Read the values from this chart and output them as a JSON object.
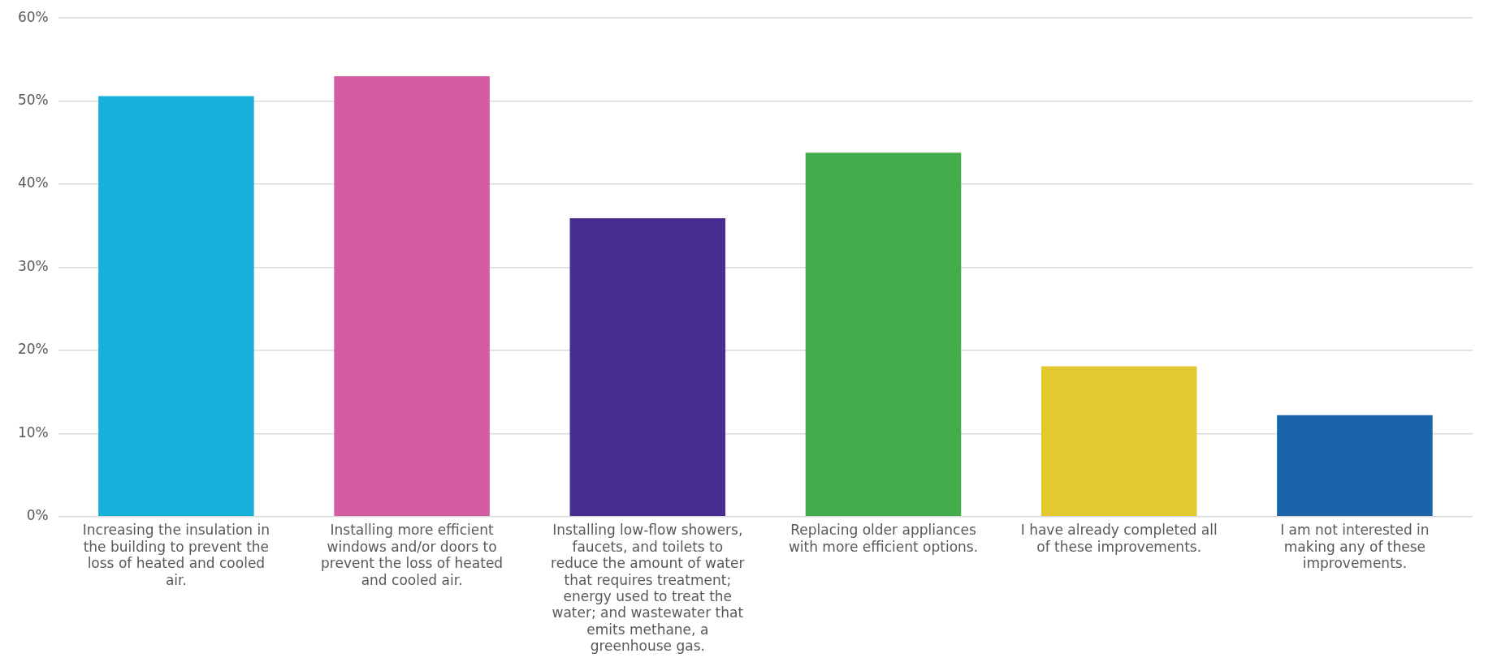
{
  "chart_data": {
    "type": "bar",
    "categories": [
      "Increasing the insulation in the building to prevent the loss of heated and cooled air.",
      "Installing more efficient windows and/or doors to prevent the loss of heated and cooled air.",
      "Installing low-flow showers, faucets, and toilets to reduce the amount of water that requires treatment; energy used to treat the water; and wastewater that emits methane, a greenhouse gas.",
      "Replacing older appliances with more efficient options.",
      "I have already completed all of these improvements.",
      "I am not interested in making any of these improvements."
    ],
    "values": [
      50.6,
      53.0,
      35.9,
      43.8,
      18.1,
      12.2
    ],
    "colors": [
      "#17b0db",
      "#d45ca0",
      "#472d91",
      "#44ad4b",
      "#e4c830",
      "#1b64a9"
    ],
    "ylim": [
      0,
      60
    ],
    "yticks": [
      {
        "value": 0,
        "label": "0%"
      },
      {
        "value": 10,
        "label": "10%"
      },
      {
        "value": 20,
        "label": "20%"
      },
      {
        "value": 30,
        "label": "30%"
      },
      {
        "value": 40,
        "label": "40%"
      },
      {
        "value": 50,
        "label": "50%"
      },
      {
        "value": 60,
        "label": "60%"
      }
    ],
    "grid": "y"
  }
}
